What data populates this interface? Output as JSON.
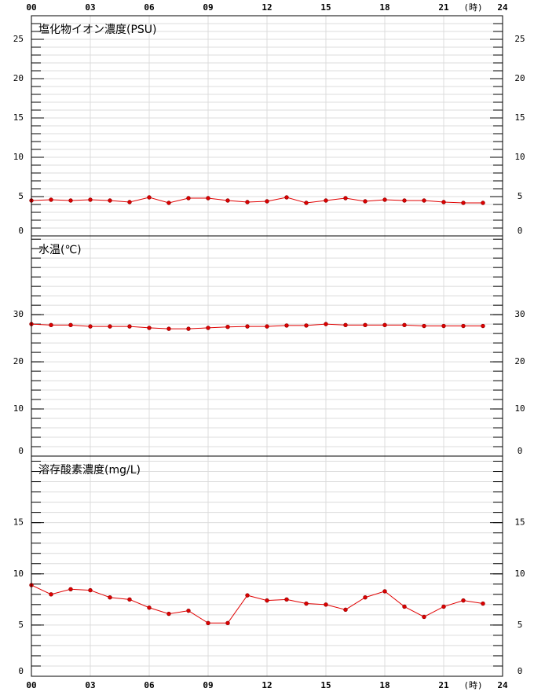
{
  "chart_data": [
    {
      "type": "line",
      "title": "塩化物イオン濃度(PSU)",
      "xlabel": "(時)",
      "x": [
        0,
        1,
        2,
        3,
        4,
        5,
        6,
        7,
        8,
        9,
        10,
        11,
        12,
        13,
        14,
        15,
        16,
        17,
        18,
        19,
        20,
        21,
        22,
        23
      ],
      "values": [
        4.5,
        4.6,
        4.5,
        4.6,
        4.5,
        4.3,
        4.9,
        4.2,
        4.8,
        4.8,
        4.5,
        4.3,
        4.4,
        4.9,
        4.2,
        4.5,
        4.8,
        4.4,
        4.6,
        4.5,
        4.5,
        4.3,
        4.2,
        4.2
      ],
      "color": "#e00000",
      "xlim": [
        0,
        24
      ],
      "xticks": [
        {
          "value": 0,
          "label": "00"
        },
        {
          "value": 3,
          "label": "03"
        },
        {
          "value": 6,
          "label": "06"
        },
        {
          "value": 9,
          "label": "09"
        },
        12,
        15,
        18,
        21,
        24
      ],
      "ylim": [
        0,
        28
      ],
      "yticks": [
        0,
        5,
        10,
        15,
        20,
        25
      ],
      "minor_step": 1,
      "grid": true
    },
    {
      "type": "line",
      "title": "水温(℃)",
      "x": [
        0,
        1,
        2,
        3,
        4,
        5,
        6,
        7,
        8,
        9,
        10,
        11,
        12,
        13,
        14,
        15,
        16,
        17,
        18,
        19,
        20,
        21,
        22,
        23
      ],
      "values": [
        28.0,
        27.8,
        27.8,
        27.5,
        27.5,
        27.5,
        27.2,
        27.0,
        27.0,
        27.2,
        27.4,
        27.5,
        27.5,
        27.7,
        27.7,
        28.0,
        27.8,
        27.8,
        27.8,
        27.8,
        27.6,
        27.6,
        27.6,
        27.6
      ],
      "color": "#e00000",
      "xlim": [
        0,
        24
      ],
      "xticks": [
        {
          "value": 0,
          "label": "00"
        },
        {
          "value": 3,
          "label": "03"
        },
        {
          "value": 6,
          "label": "06"
        },
        {
          "value": 9,
          "label": "09"
        },
        12,
        15,
        18,
        21,
        24
      ],
      "ylim": [
        0,
        46.7
      ],
      "yticks": [
        0,
        10,
        20,
        30
      ],
      "minor_step": 2,
      "grid": true
    },
    {
      "type": "line",
      "title": "溶存酸素濃度(mg/L)",
      "xlabel": "(時)",
      "x": [
        0,
        1,
        2,
        3,
        4,
        5,
        6,
        7,
        8,
        9,
        10,
        11,
        12,
        13,
        14,
        15,
        16,
        17,
        18,
        19,
        20,
        21,
        22,
        23
      ],
      "values": [
        8.9,
        8.0,
        8.5,
        8.4,
        7.7,
        7.5,
        6.7,
        6.1,
        6.4,
        5.2,
        5.2,
        7.9,
        7.4,
        7.5,
        7.1,
        7.0,
        6.5,
        7.7,
        8.3,
        6.8,
        5.8,
        6.8,
        7.4,
        7.1
      ],
      "color": "#e00000",
      "xlim": [
        0,
        24
      ],
      "xticks": [
        {
          "value": 0,
          "label": "00"
        },
        {
          "value": 3,
          "label": "03"
        },
        {
          "value": 6,
          "label": "06"
        },
        {
          "value": 9,
          "label": "09"
        },
        12,
        15,
        18,
        21,
        24
      ],
      "ylim": [
        0,
        21.5
      ],
      "yticks": [
        0,
        5,
        10,
        15
      ],
      "minor_step": 1,
      "grid": true
    }
  ]
}
